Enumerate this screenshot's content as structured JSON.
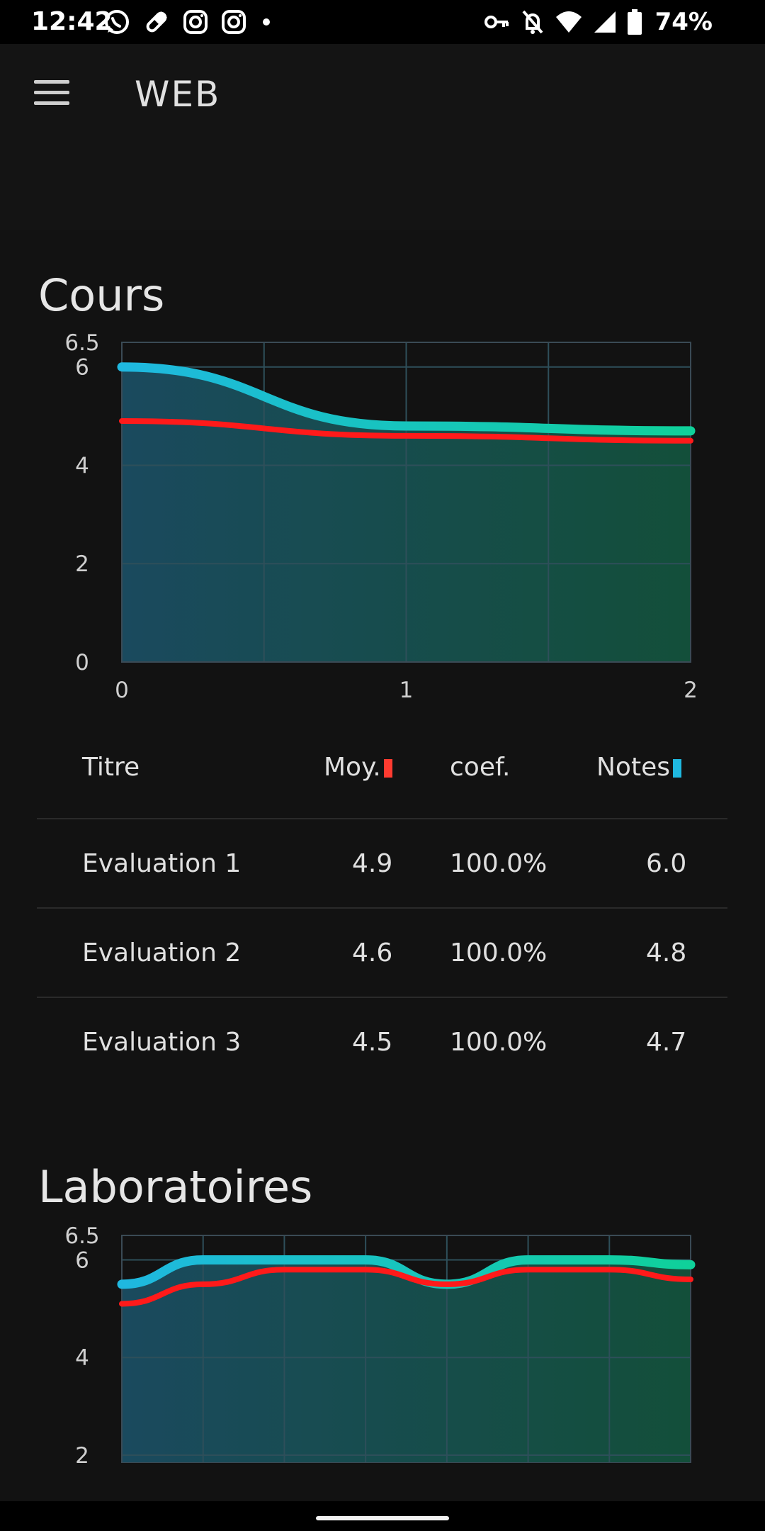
{
  "status_bar": {
    "time": "12:42",
    "left_icons": [
      "whatsapp-icon",
      "pill-icon",
      "instagram-icon",
      "instagram-icon",
      "dot-icon"
    ],
    "right_icons": [
      "vpn-key-icon",
      "mute-icon",
      "wifi-icon",
      "signal-icon",
      "battery-icon"
    ],
    "battery_percent": "74%"
  },
  "app_bar": {
    "title": "WEB",
    "menu_icon": "hamburger-menu-icon"
  },
  "colors": {
    "average_line": "#ff1a1a",
    "notes_line_start": "#1fb8e0",
    "notes_line_end": "#0fd19a",
    "background": "#121212"
  },
  "sections": [
    {
      "title": "Cours",
      "table": {
        "headers": {
          "title": "Titre",
          "avg": "Moy.",
          "coef": "coef.",
          "notes": "Notes"
        },
        "rows": [
          {
            "title": "Evaluation 1",
            "avg": "4.9",
            "coef": "100.0%",
            "note": "6.0"
          },
          {
            "title": "Evaluation 2",
            "avg": "4.6",
            "coef": "100.0%",
            "note": "4.8"
          },
          {
            "title": "Evaluation 3",
            "avg": "4.5",
            "coef": "100.0%",
            "note": "4.7"
          }
        ]
      }
    },
    {
      "title": "Laboratoires"
    }
  ],
  "chart_data": [
    {
      "type": "area",
      "x": [
        0,
        1,
        2
      ],
      "x_ticks": [
        "0",
        "1",
        "2"
      ],
      "y_ticks": [
        "0",
        "2",
        "4",
        "6",
        "6.5"
      ],
      "ylim": [
        0,
        6.5
      ],
      "grid": true,
      "series": [
        {
          "role": "notes",
          "values": [
            6.0,
            4.8,
            4.7
          ]
        },
        {
          "role": "average",
          "values": [
            4.9,
            4.6,
            4.5
          ]
        }
      ]
    },
    {
      "type": "area",
      "x": [
        0,
        1,
        2,
        3,
        4,
        5,
        6,
        7
      ],
      "y_ticks": [
        "2",
        "4",
        "6",
        "6.5"
      ],
      "ylim": [
        2,
        6.5
      ],
      "grid": true,
      "series": [
        {
          "role": "notes",
          "values": [
            5.5,
            6.0,
            6.0,
            6.0,
            5.5,
            6.0,
            6.0,
            5.9
          ]
        },
        {
          "role": "average",
          "values": [
            5.1,
            5.5,
            5.8,
            5.8,
            5.5,
            5.8,
            5.8,
            5.6
          ]
        }
      ]
    }
  ]
}
